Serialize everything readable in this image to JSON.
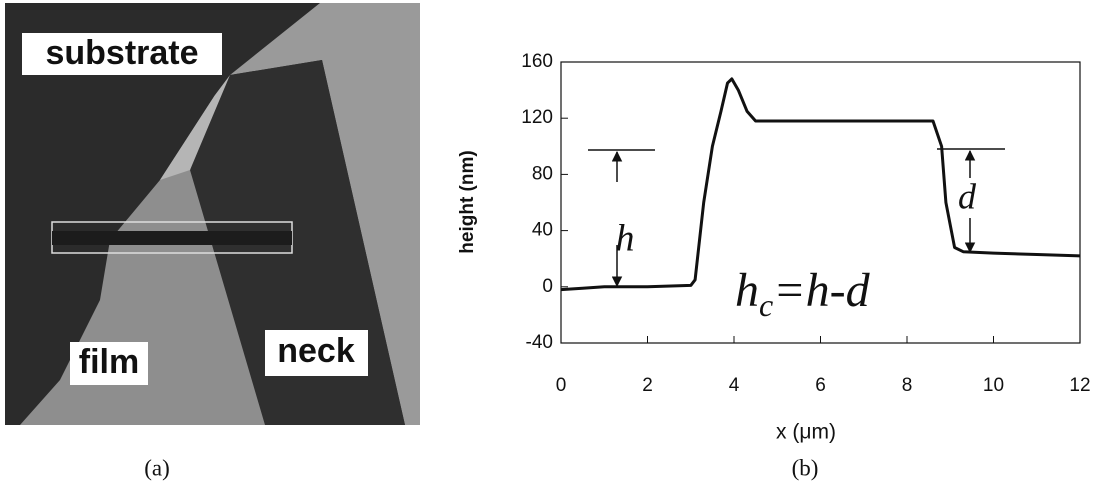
{
  "image": {
    "labels": [
      "substrate",
      "film",
      "neck"
    ],
    "caption": "(a)"
  },
  "chart_data": {
    "type": "line",
    "caption": "(b)",
    "x_label": "x (μm)",
    "y_label": "height (nm)",
    "annotations": {
      "h": "h",
      "d": "d",
      "equation": {
        "base": "h",
        "subscript": "c",
        "rest": "=h-d"
      }
    },
    "x": [
      0,
      0.5,
      1,
      2,
      3,
      3.1,
      3.3,
      3.5,
      3.7,
      3.85,
      3.95,
      4.1,
      4.3,
      4.5,
      5,
      6,
      7,
      8,
      8.6,
      8.8,
      8.9,
      9.1,
      9.3,
      10,
      11,
      12
    ],
    "values": [
      -2,
      -1,
      0,
      0,
      1,
      5,
      60,
      100,
      125,
      145,
      148,
      140,
      125,
      118,
      118,
      118,
      118,
      118,
      118,
      100,
      60,
      28,
      25,
      24,
      23,
      22
    ],
    "color": "#111111",
    "xlim": [
      0,
      12
    ],
    "xticks": [
      0,
      2,
      4,
      6,
      8,
      10,
      12
    ],
    "ylim": [
      -40,
      160
    ],
    "yticks": [
      -40,
      0,
      40,
      80,
      120,
      160
    ]
  }
}
